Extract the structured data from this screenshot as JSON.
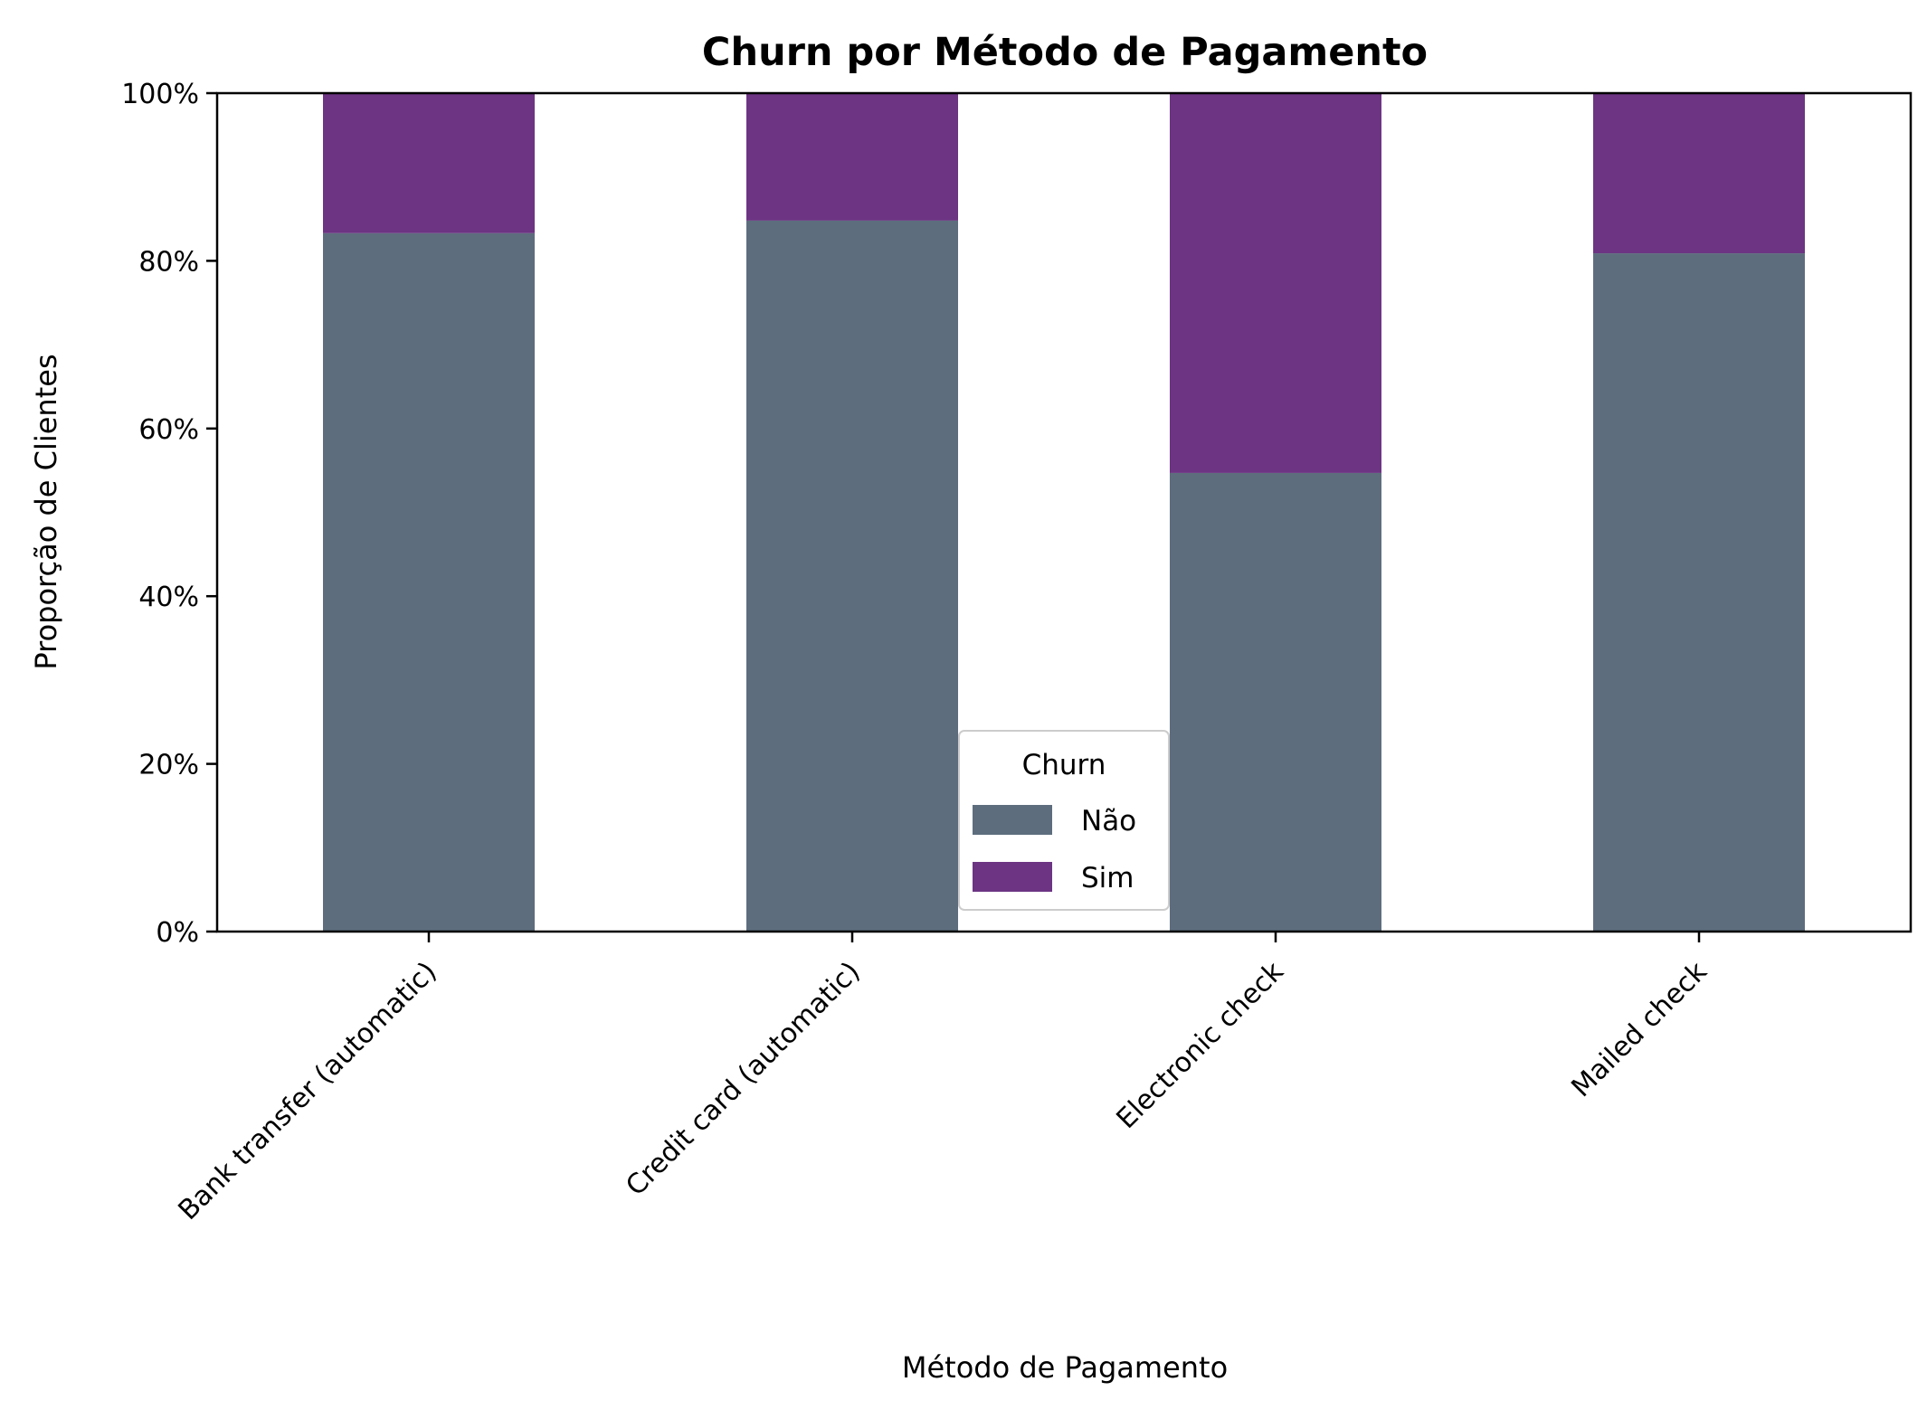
{
  "chart_data": {
    "type": "bar",
    "stacked": true,
    "title": "Churn por Método de Pagamento",
    "xlabel": "Método de Pagamento",
    "ylabel": "Proporção de Clientes",
    "ylim": [
      0,
      1
    ],
    "yticks": [
      "0%",
      "20%",
      "40%",
      "60%",
      "80%",
      "100%"
    ],
    "categories": [
      "Bank transfer (automatic)",
      "Credit card (automatic)",
      "Electronic check",
      "Mailed check"
    ],
    "series": [
      {
        "name": "Não",
        "values": [
          0.833,
          0.848,
          0.547,
          0.809
        ],
        "color": "#5d6d7e"
      },
      {
        "name": "Sim",
        "values": [
          0.167,
          0.152,
          0.453,
          0.191
        ],
        "color": "#6c3483"
      }
    ],
    "legend": {
      "title": "Churn",
      "placement": "lower-center"
    },
    "grid": false
  }
}
